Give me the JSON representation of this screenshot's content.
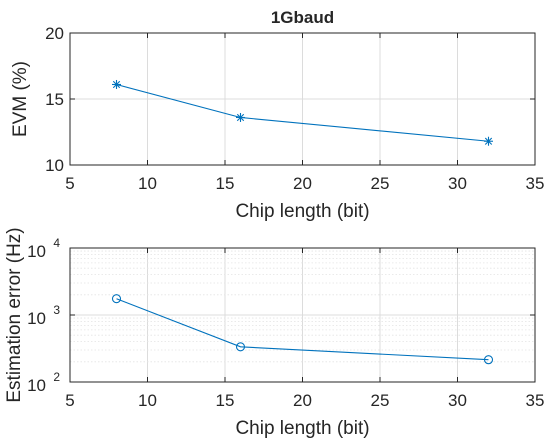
{
  "chart_data": [
    {
      "type": "line",
      "title": "1Gbaud",
      "xlabel": "Chip length (bit)",
      "ylabel": "EVM (%)",
      "xlim": [
        5,
        35
      ],
      "ylim": [
        10,
        20
      ],
      "xticks": [
        "5",
        "10",
        "15",
        "20",
        "25",
        "30",
        "35"
      ],
      "yticks": [
        "10",
        "15",
        "20"
      ],
      "grid": "major",
      "marker": "asterisk",
      "color": "#0072BD",
      "x": [
        8,
        16,
        32
      ],
      "y": [
        16.1,
        13.6,
        11.8
      ]
    },
    {
      "type": "line",
      "title": "",
      "xlabel": "Chip length (bit)",
      "ylabel": "Estimation error (Hz)",
      "xlim": [
        5,
        35
      ],
      "ylim": [
        100,
        10000
      ],
      "yscale": "log",
      "xticks": [
        "5",
        "10",
        "15",
        "20",
        "25",
        "30",
        "35"
      ],
      "yticks": [
        {
          "base": "10",
          "exp": "2"
        },
        {
          "base": "10",
          "exp": "3"
        },
        {
          "base": "10",
          "exp": "4"
        }
      ],
      "grid": "major and minor",
      "marker": "circle",
      "color": "#0072BD",
      "x": [
        8,
        16,
        32
      ],
      "y": [
        1750,
        335,
        215
      ]
    }
  ]
}
